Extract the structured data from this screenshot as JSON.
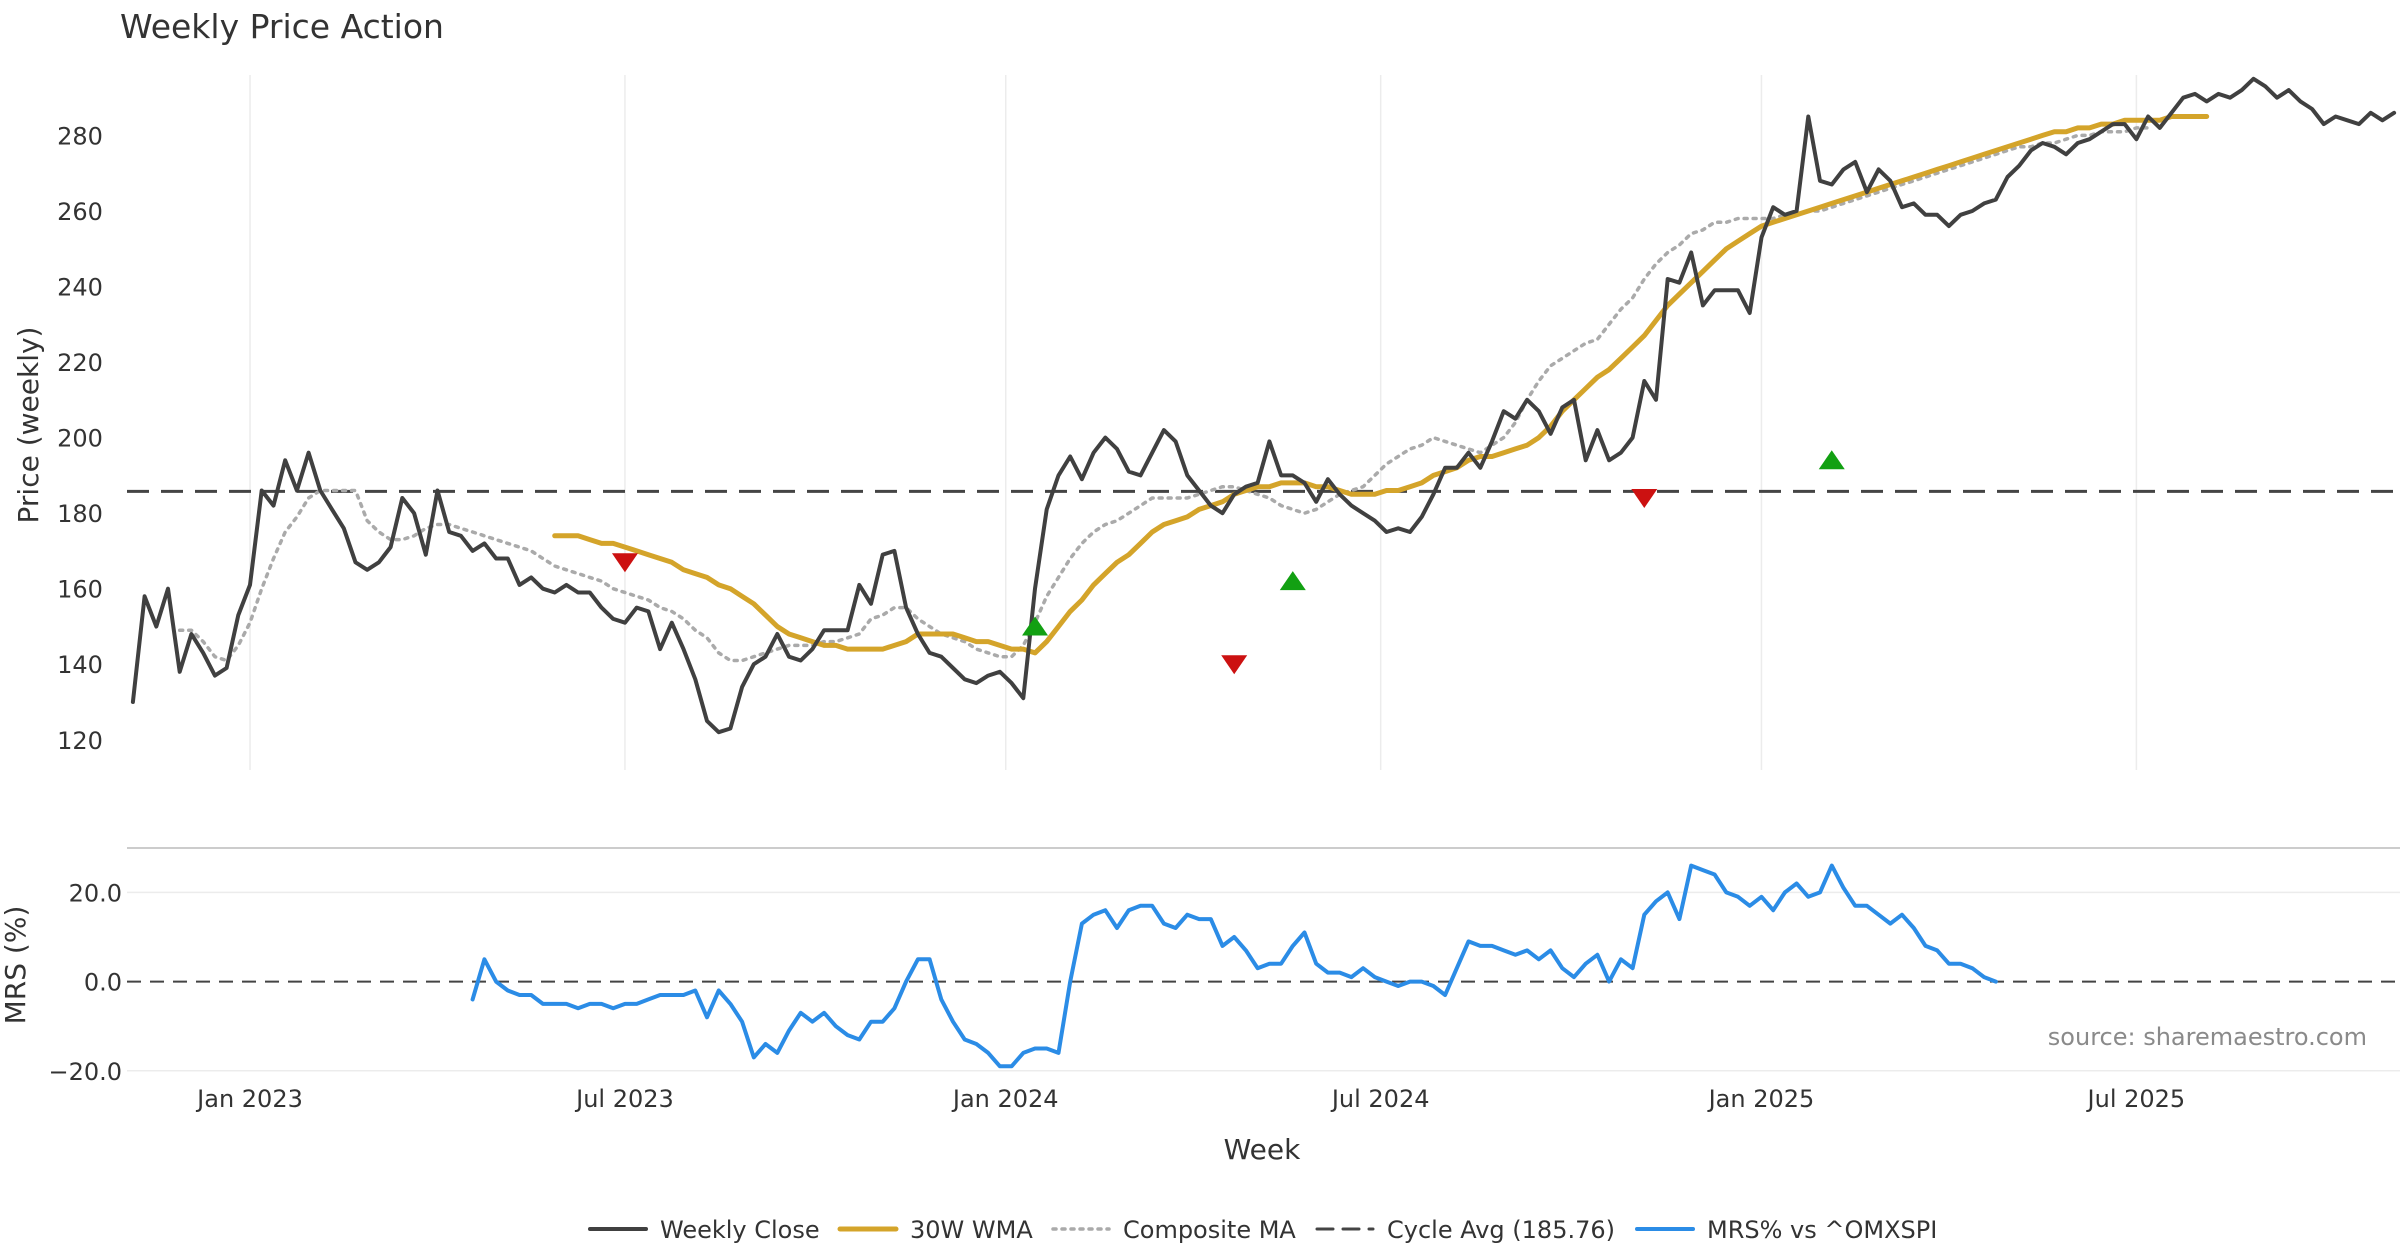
{
  "chart_data": {
    "type": "line",
    "title": "Weekly Price Action",
    "xlabel": "Week",
    "x_ticks": [
      "Jan 2023",
      "Jul 2023",
      "Jan 2024",
      "Jul 2024",
      "Jan 2025",
      "Jul 2025"
    ],
    "x_tick_weeks": [
      10,
      42,
      74.5,
      106.5,
      139,
      171
    ],
    "week_range": [
      -0.5,
      193.5
    ],
    "price_panel": {
      "ylabel": "Price (weekly)",
      "ylim": [
        112,
        296
      ],
      "y_ticks": [
        120,
        140,
        160,
        180,
        200,
        220,
        240,
        260,
        280
      ],
      "grid": true,
      "cycle_avg": 185.76
    },
    "mrs_panel": {
      "ylabel": "MRS (%)",
      "ylim": [
        -20.5,
        29.5
      ],
      "y_ticks": [
        20,
        0,
        -20
      ],
      "y_tick_labels": [
        "20.0",
        "0.0",
        "−20.0"
      ],
      "zero_line": 0
    },
    "series": [
      {
        "name": "Weekly Close",
        "color": "#404040",
        "style": "solid",
        "values": [
          130,
          158,
          150,
          160,
          138,
          148,
          143,
          137,
          139,
          153,
          161,
          186,
          182,
          194,
          186,
          196,
          186,
          181,
          176,
          167,
          165,
          167,
          171,
          184,
          180,
          169,
          186,
          175,
          174,
          170,
          172,
          168,
          168,
          161,
          163,
          160,
          159,
          161,
          159,
          159,
          155,
          152,
          151,
          155,
          154,
          144,
          151,
          144,
          136,
          125,
          122,
          123,
          134,
          140,
          142,
          148,
          142,
          141,
          144,
          149,
          149,
          149,
          161,
          156,
          169,
          170,
          155,
          148,
          143,
          142,
          139,
          136,
          135,
          137,
          138,
          135,
          131,
          160,
          181,
          190,
          195,
          189,
          196,
          200,
          197,
          191,
          190,
          196,
          202,
          199,
          190,
          186,
          182,
          180,
          185,
          187,
          188,
          199,
          190,
          190,
          188,
          183,
          189,
          185,
          182,
          180,
          178,
          175,
          176,
          175,
          179,
          185,
          192,
          192,
          196,
          192,
          199,
          207,
          205,
          210,
          207,
          201,
          208,
          210,
          194,
          202,
          194,
          196,
          200,
          215,
          210,
          242,
          241,
          249,
          235,
          239,
          239,
          239,
          233,
          253,
          261,
          259,
          260,
          285,
          268,
          267,
          271,
          273,
          265,
          271,
          268,
          261,
          262,
          259,
          259,
          256,
          259,
          260,
          262,
          263,
          269,
          272,
          276,
          278,
          277,
          275,
          278,
          279,
          281,
          283,
          283,
          279,
          285,
          282,
          286,
          290,
          291,
          289,
          291,
          290,
          292,
          295,
          293,
          290,
          292,
          289,
          287,
          283,
          285,
          284,
          283,
          286,
          284,
          286
        ]
      },
      {
        "name": "30W WMA",
        "color": "#d4a42a",
        "style": "solid",
        "start_week": 36,
        "values": [
          174,
          174,
          174,
          173,
          172,
          172,
          171,
          170,
          169,
          168,
          167,
          165,
          164,
          163,
          161,
          160,
          158,
          156,
          153,
          150,
          148,
          147,
          146,
          145,
          145,
          144,
          144,
          144,
          144,
          145,
          146,
          148,
          148,
          148,
          148,
          147,
          146,
          146,
          145,
          144,
          144,
          143,
          146,
          150,
          154,
          157,
          161,
          164,
          167,
          169,
          172,
          175,
          177,
          178,
          179,
          181,
          182,
          183,
          185,
          186,
          187,
          187,
          188,
          188,
          188,
          187,
          187,
          186,
          185,
          185,
          185,
          186,
          186,
          187,
          188,
          190,
          191,
          192,
          194,
          195,
          195,
          196,
          197,
          198,
          200,
          203,
          207,
          210,
          213,
          216,
          218,
          221,
          224,
          227,
          231,
          235,
          238,
          241,
          244,
          247,
          250,
          252,
          254,
          256,
          257,
          258,
          259,
          260,
          261,
          262,
          263,
          264,
          265,
          266,
          267,
          268,
          269,
          270,
          271,
          272,
          273,
          274,
          275,
          276,
          277,
          278,
          279,
          280,
          281,
          281,
          282,
          282,
          283,
          283,
          284,
          284,
          284,
          284,
          285,
          285,
          285,
          285
        ]
      },
      {
        "name": "Composite MA",
        "color": "#aaaaaa",
        "style": "dotted",
        "start_week": 4,
        "values": [
          149,
          149,
          146,
          142,
          141,
          145,
          151,
          160,
          168,
          175,
          179,
          184,
          186,
          186,
          186,
          186,
          178,
          175,
          173,
          173,
          174,
          176,
          177,
          177,
          176,
          175,
          174,
          173,
          172,
          171,
          170,
          168,
          166,
          165,
          164,
          163,
          162,
          160,
          159,
          158,
          157,
          155,
          154,
          152,
          149,
          147,
          143,
          141,
          141,
          142,
          143,
          144,
          145,
          145,
          145,
          146,
          146,
          147,
          148,
          152,
          153,
          155,
          155,
          152,
          150,
          148,
          147,
          146,
          144,
          143,
          142,
          142,
          145,
          151,
          158,
          163,
          168,
          172,
          175,
          177,
          178,
          180,
          182,
          184,
          184,
          184,
          184,
          185,
          186,
          187,
          187,
          186,
          185,
          184,
          182,
          181,
          180,
          181,
          183,
          185,
          186,
          187,
          190,
          193,
          195,
          197,
          198,
          200,
          199,
          198,
          197,
          196,
          198,
          200,
          204,
          210,
          215,
          219,
          221,
          223,
          225,
          226,
          230,
          234,
          237,
          242,
          246,
          249,
          251,
          254,
          255,
          257,
          257,
          258,
          258,
          258,
          258,
          259,
          259,
          260,
          260,
          261,
          262,
          263,
          264,
          265,
          266,
          267,
          268,
          269,
          270,
          271,
          272,
          273,
          274,
          275,
          276,
          277,
          277,
          278,
          278,
          279,
          280,
          280,
          281,
          281,
          281,
          282,
          282
        ]
      },
      {
        "name": "Cycle Avg (185.76)",
        "color": "#444444",
        "style": "dashed",
        "value": 185.76
      },
      {
        "name": "MRS% vs ^OMXSPI",
        "color": "#2b8ce6",
        "style": "solid",
        "panel": "mrs",
        "start_week": 29,
        "values": [
          -4,
          5,
          0,
          -2,
          -3,
          -3,
          -5,
          -5,
          -5,
          -6,
          -5,
          -5,
          -6,
          -5,
          -5,
          -4,
          -3,
          -3,
          -3,
          -2,
          -8,
          -2,
          -5,
          -9,
          -17,
          -14,
          -16,
          -11,
          -7,
          -9,
          -7,
          -10,
          -12,
          -13,
          -9,
          -9,
          -6,
          0,
          5,
          5,
          -4,
          -9,
          -13,
          -14,
          -16,
          -19,
          -19,
          -16,
          -15,
          -15,
          -16,
          0,
          13,
          15,
          16,
          12,
          16,
          17,
          17,
          13,
          12,
          15,
          14,
          14,
          8,
          10,
          7,
          3,
          4,
          4,
          8,
          11,
          4,
          2,
          2,
          1,
          3,
          1,
          0,
          -1,
          0,
          0,
          -1,
          -3,
          3,
          9,
          8,
          8,
          7,
          6,
          7,
          5,
          7,
          3,
          1,
          4,
          6,
          0,
          5,
          3,
          15,
          18,
          20,
          14,
          26,
          25,
          24,
          20,
          19,
          17,
          19,
          16,
          20,
          22,
          19,
          20,
          26,
          21,
          17,
          17,
          15,
          13,
          15,
          12,
          8,
          7,
          4,
          4,
          3,
          1,
          0
        ]
      }
    ],
    "signals": [
      {
        "type": "sell",
        "week": 42,
        "value": 167
      },
      {
        "type": "buy",
        "week": 77,
        "value": 150
      },
      {
        "type": "sell",
        "week": 94,
        "value": 140
      },
      {
        "type": "buy",
        "week": 99,
        "value": 162
      },
      {
        "type": "sell",
        "week": 129,
        "value": 184
      },
      {
        "type": "buy",
        "week": 145,
        "value": 194
      }
    ],
    "legend": {
      "position": "bottom-center",
      "entries": [
        "Weekly Close",
        "30W WMA",
        "Composite MA",
        "Cycle Avg (185.76)",
        "MRS% vs ^OMXSPI"
      ]
    },
    "annotation": "source: sharemaestro.com"
  }
}
